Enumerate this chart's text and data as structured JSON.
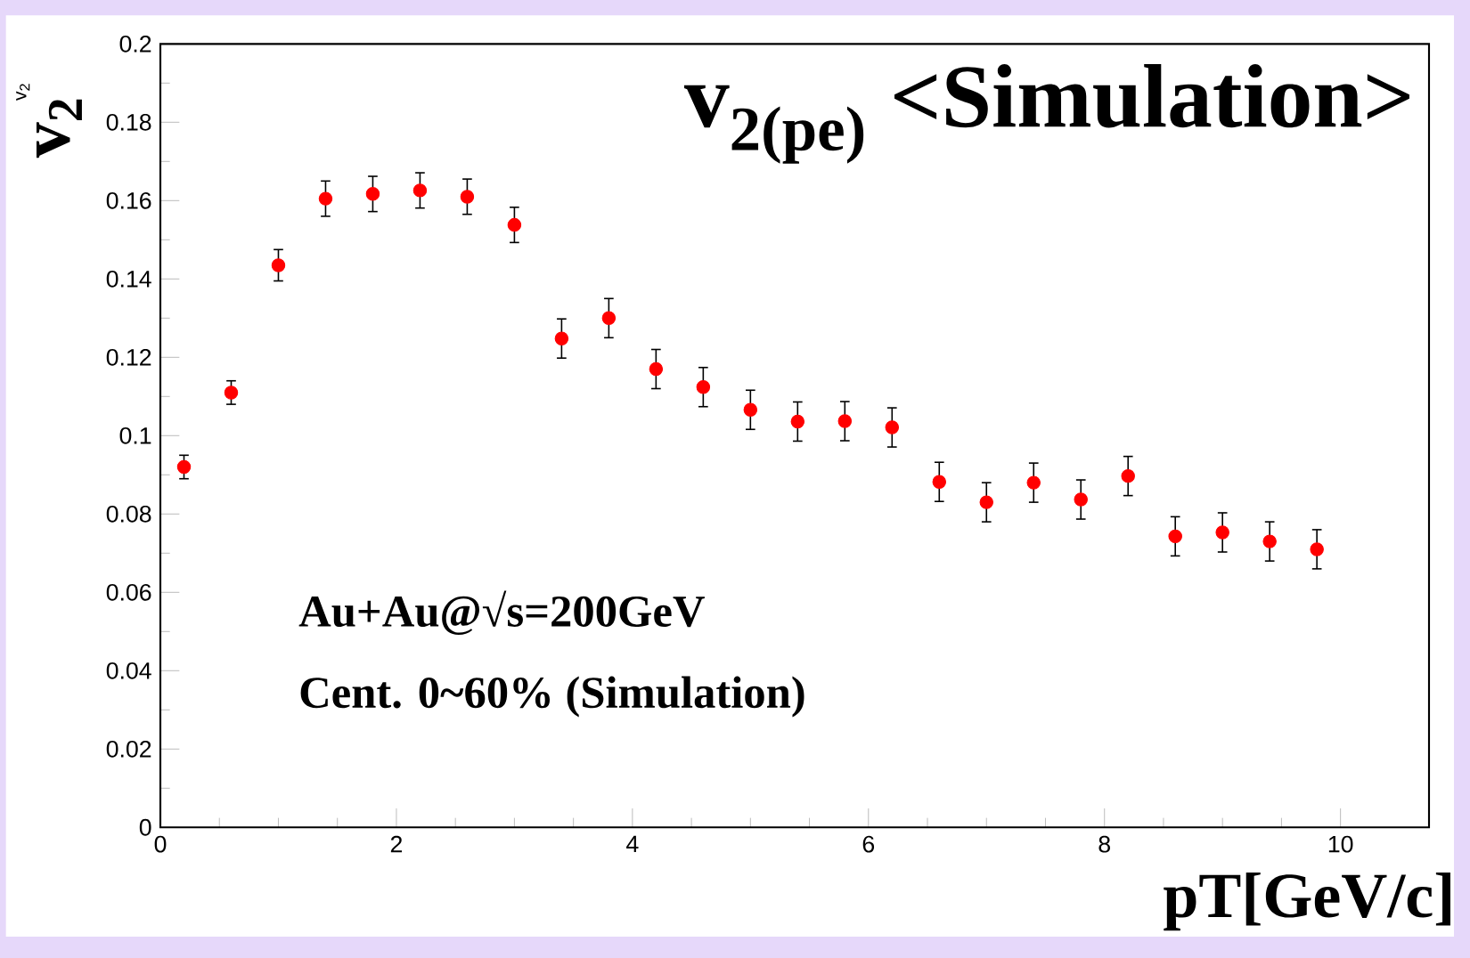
{
  "chart_data": {
    "type": "scatter",
    "title": "v$_{2(pe)}$ <Simulation>",
    "xlabel": "pT[GeV/c]",
    "ylabel": "v$_{2}$",
    "annotations": [
      "v$_{2}$",
      "Au+Au@√s=200GeV",
      "Cent. 0~60% (Simulation)"
    ],
    "x": [
      0.2,
      0.6,
      1.0,
      1.4,
      1.8,
      2.2,
      2.6,
      3.0,
      3.4,
      3.8,
      4.2,
      4.6,
      5.0,
      5.4,
      5.8,
      6.2,
      6.6,
      7.0,
      7.4,
      7.8,
      8.2,
      8.6,
      9.0,
      9.4,
      9.8
    ],
    "values": [
      0.092,
      0.111,
      0.1435,
      0.1605,
      0.1617,
      0.1626,
      0.161,
      0.1538,
      0.1248,
      0.13,
      0.117,
      0.1124,
      0.1066,
      0.1036,
      0.1037,
      0.1021,
      0.0882,
      0.083,
      0.088,
      0.0837,
      0.0897,
      0.0743,
      0.0753,
      0.073,
      0.071
    ],
    "errors": [
      0.003,
      0.003,
      0.004,
      0.0045,
      0.0045,
      0.0045,
      0.0045,
      0.0045,
      0.005,
      0.005,
      0.005,
      0.005,
      0.005,
      0.005,
      0.005,
      0.005,
      0.005,
      0.005,
      0.005,
      0.005,
      0.005,
      0.005,
      0.005,
      0.005,
      0.005
    ],
    "color": "#ff0000",
    "marker": "circle",
    "xlim": [
      0,
      10.75
    ],
    "ylim": [
      0,
      0.2
    ],
    "xticks": [
      0,
      2,
      4,
      6,
      8,
      10
    ],
    "yticks": [
      0,
      0.02,
      0.04,
      0.06,
      0.08,
      0.1,
      0.12,
      0.14,
      0.16,
      0.18,
      0.2
    ],
    "grid": false
  }
}
